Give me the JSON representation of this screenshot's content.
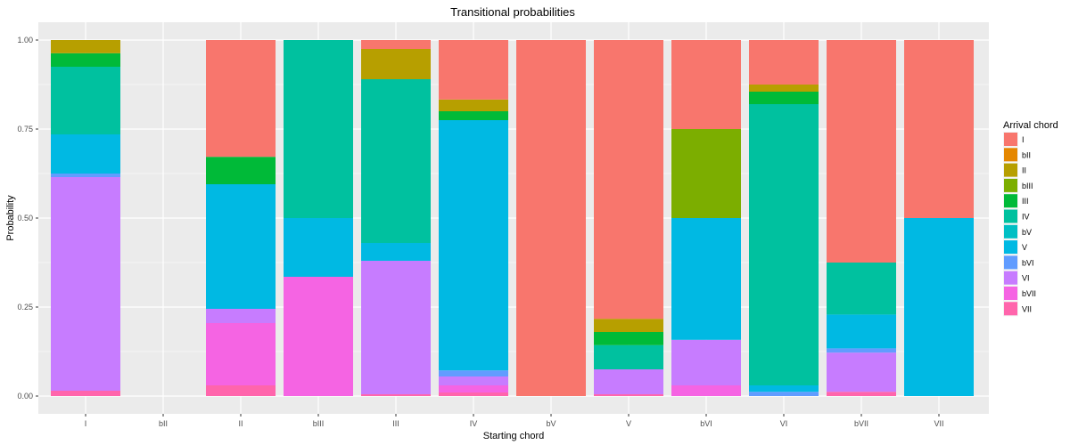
{
  "chart_data": {
    "type": "bar",
    "stacked": true,
    "title": "Transitional probabilities",
    "xlabel": "Starting chord",
    "ylabel": "Probability",
    "ylim": [
      0,
      1
    ],
    "yticks": [
      "0.00",
      "0.25",
      "0.50",
      "0.75",
      "1.00"
    ],
    "grid": true,
    "legend_position": "right",
    "legend_title": "Arrival chord",
    "categories": [
      "I",
      "bII",
      "II",
      "bIII",
      "III",
      "IV",
      "bV",
      "V",
      "bVI",
      "VI",
      "bVII",
      "VII"
    ],
    "series": [
      {
        "name": "VII",
        "color": "#FF65AC",
        "values": [
          0.015,
          0,
          0.03,
          0,
          0.005,
          0.01,
          0,
          0.005,
          0,
          0,
          0.012,
          0
        ]
      },
      {
        "name": "bVII",
        "color": "#F564E3",
        "values": [
          0,
          0,
          0.175,
          0.335,
          0,
          0.02,
          0,
          0,
          0.03,
          0,
          0,
          0
        ]
      },
      {
        "name": "VI",
        "color": "#C77CFF",
        "values": [
          0.6,
          0,
          0.04,
          0,
          0.375,
          0.025,
          0,
          0.07,
          0.128,
          0,
          0.11,
          0
        ]
      },
      {
        "name": "bVI",
        "color": "#619CFF",
        "values": [
          0.01,
          0,
          0,
          0,
          0,
          0.017,
          0,
          0,
          0,
          0.012,
          0.012,
          0
        ]
      },
      {
        "name": "V",
        "color": "#00B9E3",
        "values": [
          0.11,
          0,
          0.35,
          0.165,
          0.05,
          0.703,
          0,
          0,
          0.342,
          0.018,
          0.095,
          0.5
        ]
      },
      {
        "name": "bV",
        "color": "#00BFC4",
        "values": [
          0,
          0,
          0,
          0,
          0,
          0,
          0,
          0,
          0,
          0,
          0,
          0
        ]
      },
      {
        "name": "IV",
        "color": "#00C19F",
        "values": [
          0.19,
          0,
          0,
          0.5,
          0.46,
          0,
          0,
          0.068,
          0,
          0.79,
          0.146,
          0
        ]
      },
      {
        "name": "III",
        "color": "#00BA38",
        "values": [
          0.038,
          0,
          0.077,
          0,
          0,
          0.025,
          0,
          0.037,
          0,
          0.035,
          0,
          0
        ]
      },
      {
        "name": "bIII",
        "color": "#7CAE00",
        "values": [
          0,
          0,
          0,
          0,
          0,
          0,
          0,
          0,
          0.25,
          0,
          0,
          0
        ]
      },
      {
        "name": "II",
        "color": "#B79F00",
        "values": [
          0.037,
          0,
          0,
          0,
          0.085,
          0.033,
          0,
          0.037,
          0,
          0.02,
          0,
          0
        ]
      },
      {
        "name": "bII",
        "color": "#E58700",
        "values": [
          0,
          0,
          0,
          0,
          0,
          0,
          0,
          0,
          0,
          0,
          0,
          0
        ]
      },
      {
        "name": "I",
        "color": "#F8766D",
        "values": [
          0,
          0,
          0.328,
          0,
          0.025,
          0.167,
          1.0,
          0.783,
          0.25,
          0.125,
          0.625,
          0.5
        ]
      }
    ],
    "legend_order": [
      "I",
      "bII",
      "II",
      "bIII",
      "III",
      "IV",
      "bV",
      "V",
      "bVI",
      "VI",
      "bVII",
      "VII"
    ]
  }
}
